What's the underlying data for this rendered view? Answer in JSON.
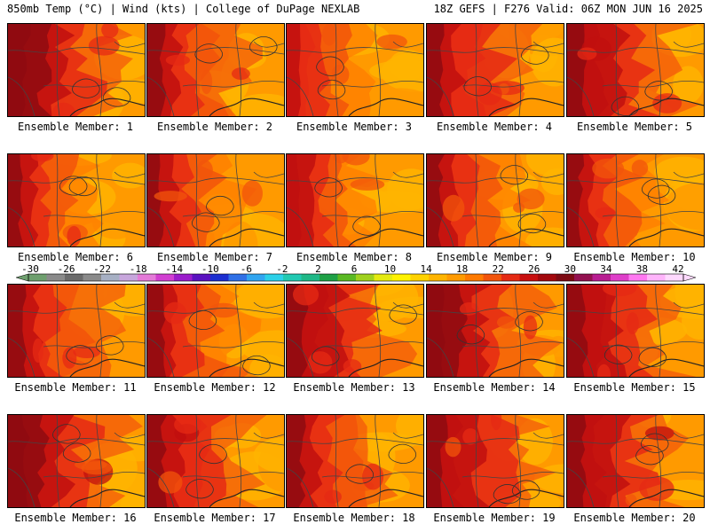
{
  "header": {
    "left": "850mb Temp (°C) | Wind (kts) | College of DuPage NEXLAB",
    "right": "18Z GEFS | F276 Valid: 06Z MON JUN 16 2025"
  },
  "members": [
    {
      "label": "Ensemble Member: 1",
      "heat": 1.0
    },
    {
      "label": "Ensemble Member: 2",
      "heat": 0.7
    },
    {
      "label": "Ensemble Member: 3",
      "heat": 0.35
    },
    {
      "label": "Ensemble Member: 4",
      "heat": 0.8
    },
    {
      "label": "Ensemble Member: 5",
      "heat": 0.9
    },
    {
      "label": "Ensemble Member: 6",
      "heat": 0.45
    },
    {
      "label": "Ensemble Member: 7",
      "heat": 0.6
    },
    {
      "label": "Ensemble Member: 8",
      "heat": 0.4
    },
    {
      "label": "Ensemble Member: 9",
      "heat": 0.6
    },
    {
      "label": "Ensemble Member: 10",
      "heat": 0.55
    },
    {
      "label": "Ensemble Member: 11",
      "heat": 0.75
    },
    {
      "label": "Ensemble Member: 12",
      "heat": 0.65
    },
    {
      "label": "Ensemble Member: 13",
      "heat": 0.9
    },
    {
      "label": "Ensemble Member: 14",
      "heat": 0.95
    },
    {
      "label": "Ensemble Member: 15",
      "heat": 0.85
    },
    {
      "label": "Ensemble Member: 16",
      "heat": 0.95
    },
    {
      "label": "Ensemble Member: 17",
      "heat": 0.8
    },
    {
      "label": "Ensemble Member: 18",
      "heat": 0.7
    },
    {
      "label": "Ensemble Member: 19",
      "heat": 0.9
    },
    {
      "label": "Ensemble Member: 20",
      "heat": 0.85
    }
  ],
  "colorbar": {
    "ticks": [
      "-30",
      "-26",
      "-22",
      "-18",
      "-14",
      "-10",
      "-6",
      "-2",
      "2",
      "6",
      "10",
      "14",
      "18",
      "22",
      "26",
      "30",
      "34",
      "38",
      "42"
    ],
    "colors": [
      "#6e9f6e",
      "#8a8a8a",
      "#6a6a6a",
      "#8a8a8a",
      "#a7b0c4",
      "#c7a6dc",
      "#e47ad8",
      "#d13fd1",
      "#9b1ccb",
      "#5a12c0",
      "#1c2fd0",
      "#2f70e6",
      "#31a5f0",
      "#2cd0e8",
      "#22c9b2",
      "#1fb887",
      "#1ea146",
      "#5ab923",
      "#9fd11e",
      "#e4ea10",
      "#fff200",
      "#ffd200",
      "#ffb400",
      "#ff9a00",
      "#ff7a00",
      "#f2540b",
      "#e52a14",
      "#c80f0f",
      "#a3080d",
      "#7d0a12",
      "#931150",
      "#b81d92",
      "#de3ec9",
      "#ff78f1",
      "#ffb4fb",
      "#ffd9ff"
    ]
  }
}
